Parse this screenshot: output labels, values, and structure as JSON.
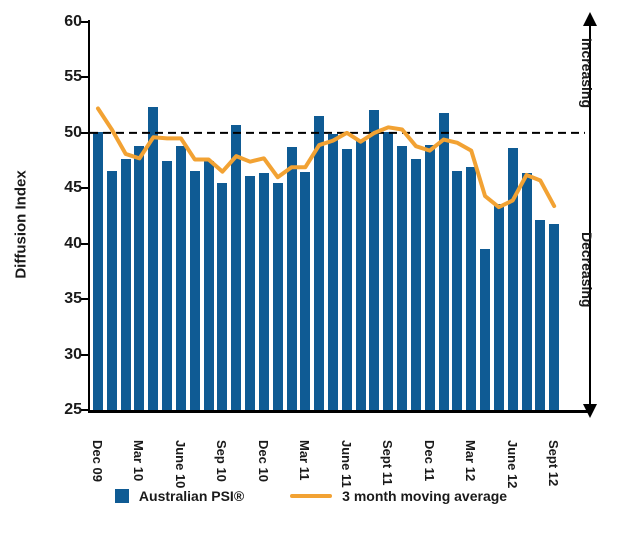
{
  "chart_data": {
    "type": "bar",
    "title": "",
    "ylabel": "Diffusion Index",
    "xlabel": "",
    "ylim": [
      25,
      60
    ],
    "yticks": [
      60,
      55,
      50,
      45,
      40,
      35,
      30,
      25
    ],
    "reference_line": 50,
    "grid": false,
    "legend_position": "bottom",
    "x_labels": [
      "Dec 09",
      "",
      "",
      "Mar 10",
      "",
      "",
      "June 10",
      "",
      "",
      "Sep 10",
      "",
      "",
      "Dec 10",
      "",
      "",
      "Mar 11",
      "",
      "",
      "June 11",
      "",
      "",
      "Sept 11",
      "",
      "",
      "Dec 11",
      "",
      "",
      "Mar 12",
      "",
      "",
      "June 12",
      "",
      "",
      "Sept 12"
    ],
    "series": [
      {
        "name": "Australian PSI®",
        "type": "bar",
        "color": "#0F5B94",
        "values": [
          50.1,
          46.6,
          47.6,
          48.8,
          52.3,
          47.5,
          48.8,
          46.6,
          47.5,
          45.5,
          50.7,
          46.1,
          46.4,
          45.5,
          48.7,
          46.5,
          51.5,
          49.9,
          48.5,
          49.3,
          52.1,
          50.1,
          48.8,
          47.6,
          48.9,
          51.8,
          46.6,
          46.9,
          39.5,
          43.6,
          48.6,
          46.4,
          42.1,
          41.8
        ]
      },
      {
        "name": "3 month moving average",
        "type": "line",
        "color": "#F2A233",
        "values": [
          52.2,
          50.3,
          48.1,
          47.7,
          49.6,
          49.5,
          49.5,
          47.6,
          47.6,
          46.5,
          47.9,
          47.4,
          47.7,
          46.0,
          46.9,
          46.9,
          48.9,
          49.3,
          50.0,
          49.2,
          50.0,
          50.5,
          50.3,
          48.8,
          48.4,
          49.4,
          49.1,
          48.4,
          44.3,
          43.3,
          43.9,
          46.2,
          45.7,
          43.4
        ]
      }
    ],
    "right_axis": {
      "top_label": "Increasing",
      "bottom_label": "Decreasing"
    }
  },
  "legend": {
    "psi_label": "Australian PSI®",
    "ma_label": "3 month moving average"
  },
  "colors": {
    "bar": "#0F5B94",
    "line": "#F2A233",
    "axis": "#000000",
    "text": "#1a1a1a"
  }
}
